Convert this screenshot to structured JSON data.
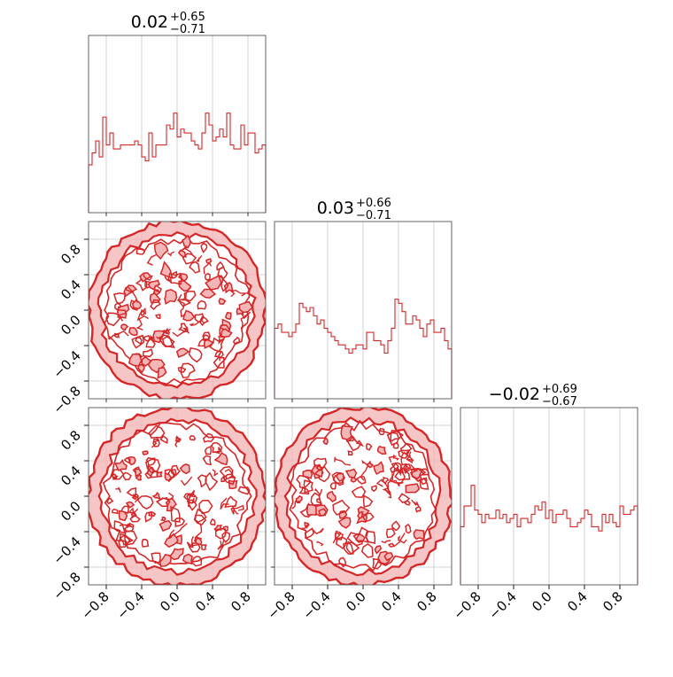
{
  "chart_data": {
    "type": "corner",
    "n_params": 3,
    "color": "#d62728",
    "fill_color": "#f4b6b7",
    "grid": true,
    "axis_range": [
      -1.0,
      1.0
    ],
    "tick_values": [
      -0.8,
      -0.4,
      0.0,
      0.4,
      0.8
    ],
    "tick_labels": [
      "−0.8",
      "−0.4",
      "0.0",
      "0.4",
      "0.8"
    ],
    "titles": [
      {
        "main": "0.02",
        "plus": "+0.65",
        "minus": "−0.71"
      },
      {
        "main": "0.03",
        "plus": "+0.66",
        "minus": "−0.71"
      },
      {
        "main": "−0.02",
        "plus": "+0.69",
        "minus": "−0.67"
      }
    ],
    "histograms": [
      {
        "param_index": 0,
        "bin_range": [
          -1.0,
          1.0
        ],
        "counts": [
          12,
          15,
          18,
          14,
          24,
          17,
          20,
          16,
          16,
          17,
          17,
          17,
          17,
          18,
          17,
          14,
          13,
          20,
          14,
          17,
          17,
          17,
          22,
          21,
          25,
          19,
          21,
          20,
          20,
          18,
          17,
          16,
          20,
          25,
          22,
          18,
          19,
          21,
          19,
          25,
          17,
          16,
          16,
          22,
          17,
          20,
          20,
          15,
          16,
          17
        ]
      },
      {
        "param_index": 1,
        "bin_range": [
          -1.0,
          1.0
        ],
        "counts": [
          17,
          18,
          16,
          16,
          15,
          16,
          18,
          23,
          22,
          21,
          22,
          20,
          18,
          19,
          17,
          16,
          15,
          14,
          13,
          13,
          12,
          11,
          12,
          13,
          13,
          12,
          16,
          16,
          14,
          14,
          13,
          11,
          14,
          17,
          24,
          23,
          21,
          18,
          18,
          20,
          19,
          17,
          15,
          18,
          19,
          16,
          16,
          17,
          14,
          12
        ]
      },
      {
        "param_index": 2,
        "bin_range": [
          -1.0,
          1.0
        ],
        "counts": [
          14,
          19,
          19,
          24,
          18,
          17,
          15,
          17,
          16,
          16,
          18,
          16,
          17,
          15,
          16,
          17,
          14,
          16,
          16,
          15,
          17,
          19,
          18,
          20,
          16,
          18,
          15,
          17,
          17,
          18,
          16,
          14,
          14,
          15,
          16,
          18,
          17,
          14,
          14,
          13,
          17,
          15,
          17,
          15,
          14,
          19,
          17,
          17,
          18,
          19
        ]
      }
    ],
    "scatter_panels": [
      {
        "x_param": 0,
        "y_param": 1
      },
      {
        "x_param": 0,
        "y_param": 2
      },
      {
        "x_param": 1,
        "y_param": 2
      }
    ],
    "sample_distribution": "uniform inside unit circle"
  }
}
